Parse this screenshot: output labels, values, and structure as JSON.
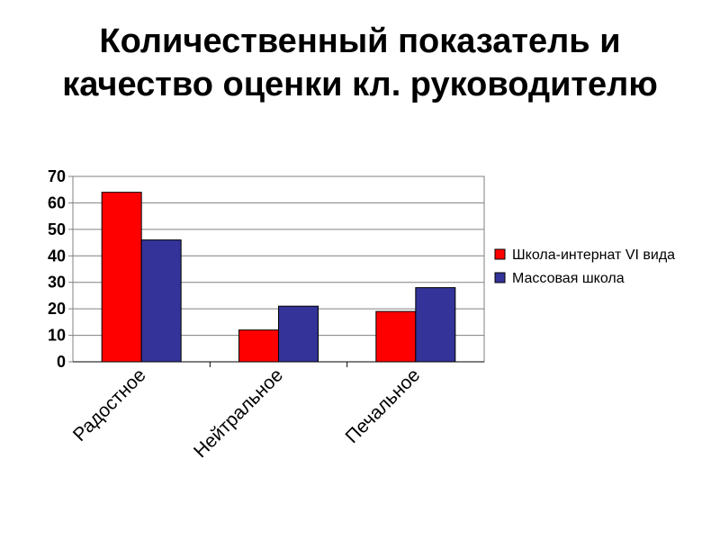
{
  "page": {
    "title_line1": "Количественный показатель и",
    "title_line2": "качество оценки кл. руководителю"
  },
  "chart_data": {
    "type": "bar",
    "categories": [
      "Радостное",
      "Нейтральное",
      "Печальное"
    ],
    "series": [
      {
        "name": "Школа-интернат VI вида",
        "values": [
          64,
          12,
          19
        ],
        "color": "#ff0000"
      },
      {
        "name": "Массовая школа",
        "values": [
          46,
          21,
          28
        ],
        "color": "#333399"
      }
    ],
    "ylim": [
      0,
      70
    ],
    "yticks": [
      0,
      10,
      20,
      30,
      40,
      50,
      60,
      70
    ],
    "grid": true,
    "legend": "right",
    "xlabel": "",
    "ylabel": ""
  }
}
